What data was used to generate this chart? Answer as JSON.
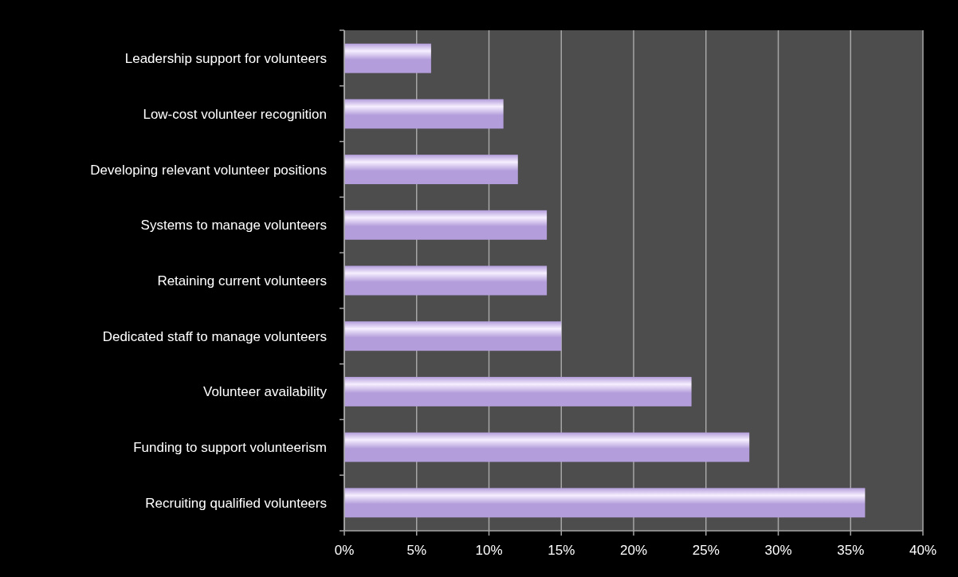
{
  "chart_data": {
    "type": "bar",
    "orientation": "horizontal",
    "categories": [
      "Leadership support for volunteers",
      "Low-cost volunteer recognition",
      "Developing relevant volunteer positions",
      "Systems to manage volunteers",
      "Retaining current volunteers",
      "Dedicated staff to manage volunteers",
      "Volunteer availability",
      "Funding to support volunteerism",
      "Recruiting qualified volunteers"
    ],
    "values": [
      6,
      11,
      12,
      14,
      14,
      15,
      24,
      28,
      36
    ],
    "color": "#b39ddb",
    "xlim": [
      0,
      40
    ],
    "xticks": [
      {
        "value": 0,
        "label": "0%"
      },
      {
        "value": 5,
        "label": "5%"
      },
      {
        "value": 10,
        "label": "10%"
      },
      {
        "value": 15,
        "label": "15%"
      },
      {
        "value": 20,
        "label": "20%"
      },
      {
        "value": 25,
        "label": "25%"
      },
      {
        "value": 30,
        "label": "30%"
      },
      {
        "value": 35,
        "label": "35%"
      },
      {
        "value": 40,
        "label": "40%"
      }
    ],
    "grid": "x"
  }
}
